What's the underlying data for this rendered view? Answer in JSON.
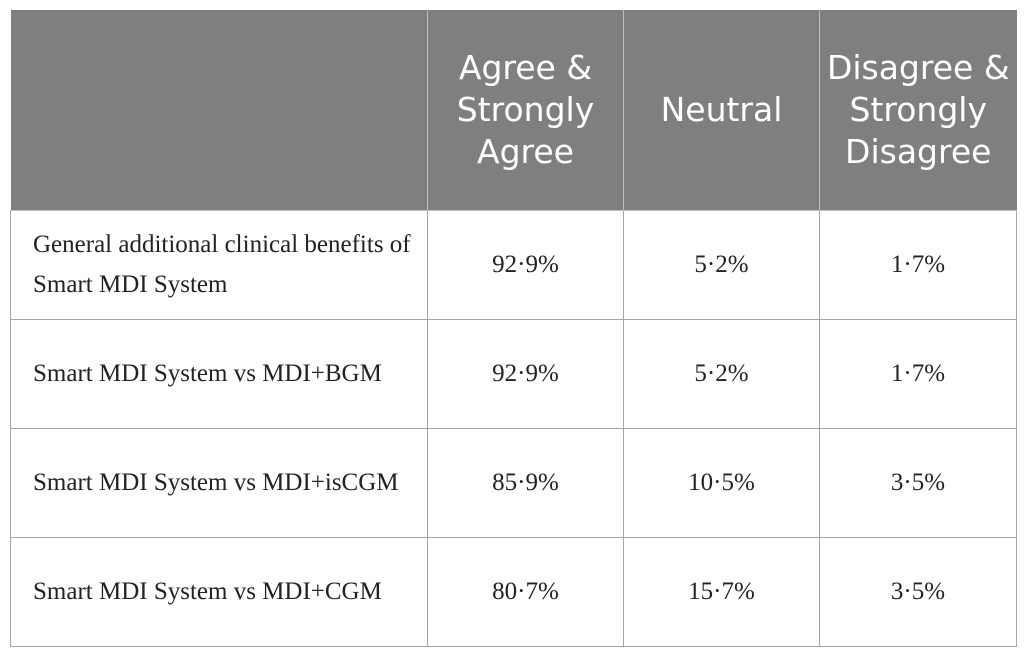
{
  "table": {
    "headers": [
      "",
      "Agree & Strongly Agree",
      "Neutral",
      "Disagree & Strongly Disagree"
    ],
    "rows": [
      {
        "label": "General additional clinical benefits of Smart MDI System",
        "agree": "92·9%",
        "neutral": "5·2%",
        "disagree": "1·7%"
      },
      {
        "label": "Smart MDI System vs MDI+BGM",
        "agree": "92·9%",
        "neutral": "5·2%",
        "disagree": "1·7%"
      },
      {
        "label": "Smart MDI System vs MDI+isCGM",
        "agree": "85·9%",
        "neutral": "10·5%",
        "disagree": "3·5%"
      },
      {
        "label": "Smart MDI System vs MDI+CGM",
        "agree": "80·7%",
        "neutral": "15·7%",
        "disagree": "3·5%"
      }
    ]
  },
  "colors": {
    "header_bg": "#7f7f7f",
    "header_text": "#ffffff",
    "grid": "#a6a6a6"
  }
}
